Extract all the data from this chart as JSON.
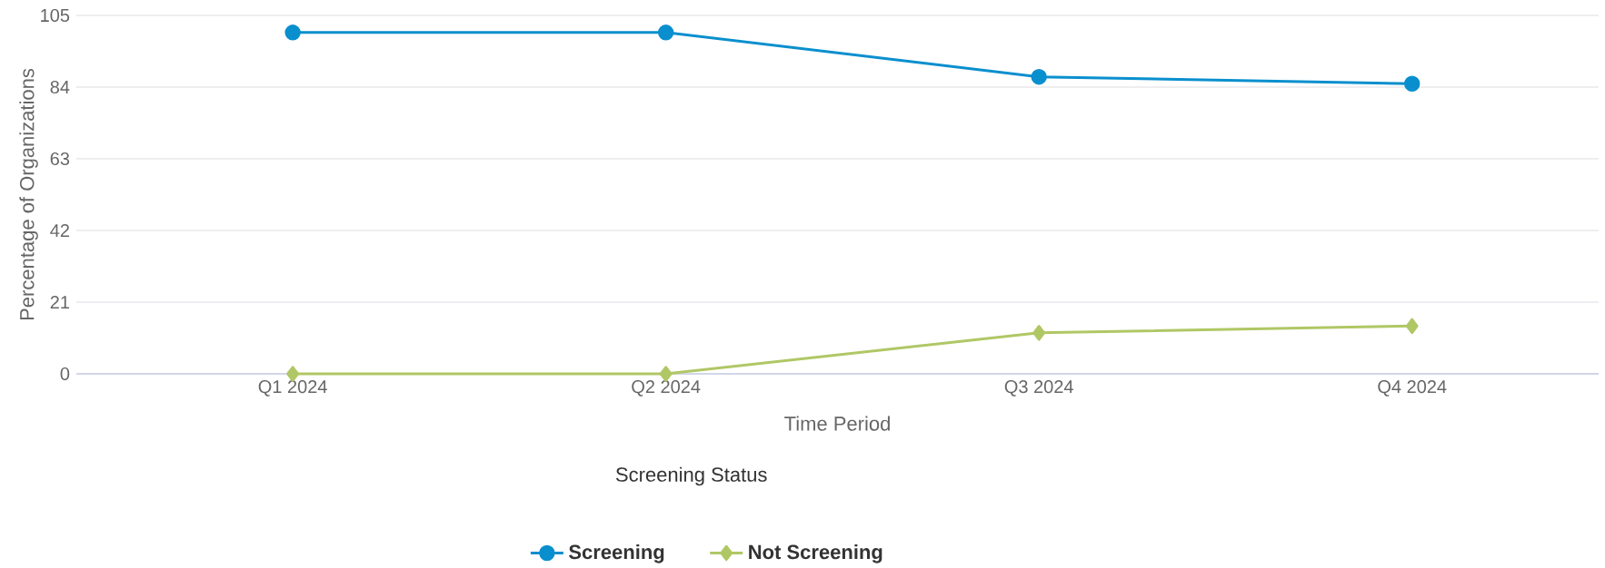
{
  "chart_data": {
    "type": "line",
    "xlabel": "Time Period",
    "ylabel": "Percentage of Organizations",
    "legend_title": "Screening Status",
    "categories": [
      "Q1 2024",
      "Q2 2024",
      "Q3 2024",
      "Q4 2024"
    ],
    "series": [
      {
        "name": "Screening",
        "color": "#0a8fce",
        "marker": "circle",
        "values": [
          100,
          100,
          87,
          85
        ]
      },
      {
        "name": "Not Screening",
        "color": "#b0c765",
        "marker": "diamond",
        "values": [
          0,
          0,
          12,
          14
        ]
      }
    ],
    "ylim": [
      0,
      105
    ],
    "yticks": [
      0,
      21,
      42,
      63,
      84,
      105
    ],
    "grid": "y",
    "legend": "bottom",
    "line_style": "solid"
  }
}
